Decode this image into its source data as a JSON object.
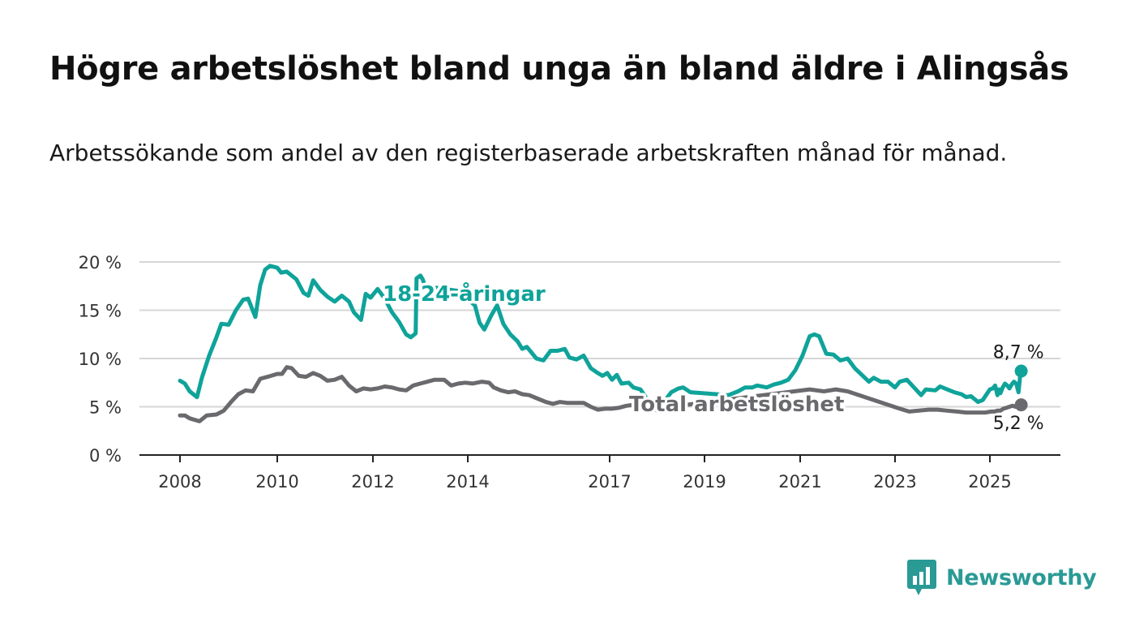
{
  "header": {
    "title": "Högre arbetslöshet bland unga än bland äldre i Alingsås",
    "subtitle": "Arbetssökande som andel av den registerbaserade arbetskraften månad för månad."
  },
  "brand": {
    "name": "Newsworthy",
    "color": "#2a9a95"
  },
  "chart_data": {
    "type": "line",
    "title": "Högre arbetslöshet bland unga än bland äldre i Alingsås",
    "subtitle": "Arbetssökande som andel av den registerbaserade arbetskraften månad för månad.",
    "x_ticks": [
      2008,
      2010,
      2012,
      2014,
      2017,
      2019,
      2021,
      2023,
      2025
    ],
    "x_tick_labels": [
      "2008",
      "2010",
      "2012",
      "2014",
      "2017",
      "2019",
      "2021",
      "2023",
      "2025"
    ],
    "y_ticks": [
      0,
      5,
      10,
      15,
      20
    ],
    "y_tick_labels": [
      "0 %",
      "5 %",
      "10 %",
      "15 %",
      "20 %"
    ],
    "xlim": [
      2007.15,
      2026.6
    ],
    "ylim": [
      0,
      20
    ],
    "grid": true,
    "series": [
      {
        "name": "18-24-åringar",
        "color": "#0fa39a",
        "end_label": "8,7 %",
        "points": [
          [
            2008.0,
            7.7
          ],
          [
            2008.1,
            7.4
          ],
          [
            2008.2,
            6.6
          ],
          [
            2008.35,
            6.0
          ],
          [
            2008.45,
            8.0
          ],
          [
            2008.6,
            10.3
          ],
          [
            2008.75,
            12.2
          ],
          [
            2008.85,
            13.6
          ],
          [
            2009.0,
            13.5
          ],
          [
            2009.15,
            15.0
          ],
          [
            2009.3,
            16.1
          ],
          [
            2009.4,
            16.2
          ],
          [
            2009.55,
            14.3
          ],
          [
            2009.65,
            17.6
          ],
          [
            2009.75,
            19.2
          ],
          [
            2009.85,
            19.6
          ],
          [
            2010.0,
            19.4
          ],
          [
            2010.08,
            18.9
          ],
          [
            2010.2,
            19.0
          ],
          [
            2010.4,
            18.2
          ],
          [
            2010.55,
            16.8
          ],
          [
            2010.65,
            16.5
          ],
          [
            2010.75,
            18.1
          ],
          [
            2010.9,
            17.1
          ],
          [
            2011.05,
            16.4
          ],
          [
            2011.2,
            15.9
          ],
          [
            2011.35,
            16.5
          ],
          [
            2011.5,
            15.9
          ],
          [
            2011.6,
            14.8
          ],
          [
            2011.75,
            14.0
          ],
          [
            2011.85,
            16.7
          ],
          [
            2011.95,
            16.3
          ],
          [
            2012.1,
            17.2
          ],
          [
            2012.25,
            16.2
          ],
          [
            2012.4,
            14.8
          ],
          [
            2012.55,
            13.8
          ],
          [
            2012.7,
            12.5
          ],
          [
            2012.8,
            12.2
          ],
          [
            2012.9,
            12.6
          ],
          [
            2012.92,
            18.3
          ],
          [
            2013.0,
            18.6
          ],
          [
            2013.05,
            18.2
          ],
          [
            2013.1,
            17.5
          ],
          [
            2013.8,
            17.0
          ],
          [
            2014.15,
            15.5
          ],
          [
            2014.25,
            13.7
          ],
          [
            2014.35,
            13.0
          ],
          [
            2014.5,
            14.5
          ],
          [
            2014.62,
            15.5
          ],
          [
            2014.75,
            13.6
          ],
          [
            2014.9,
            12.5
          ],
          [
            2015.05,
            11.8
          ],
          [
            2015.15,
            11.0
          ],
          [
            2015.25,
            11.2
          ],
          [
            2015.45,
            10.0
          ],
          [
            2015.6,
            9.8
          ],
          [
            2015.75,
            10.8
          ],
          [
            2015.9,
            10.8
          ],
          [
            2016.05,
            11.0
          ],
          [
            2016.15,
            10.1
          ],
          [
            2016.3,
            9.9
          ],
          [
            2016.45,
            10.3
          ],
          [
            2016.6,
            9.0
          ],
          [
            2016.75,
            8.5
          ],
          [
            2016.85,
            8.2
          ],
          [
            2016.95,
            8.5
          ],
          [
            2017.05,
            7.8
          ],
          [
            2017.15,
            8.3
          ],
          [
            2017.25,
            7.4
          ],
          [
            2017.4,
            7.5
          ],
          [
            2017.5,
            7.0
          ],
          [
            2017.65,
            6.8
          ],
          [
            2017.8,
            5.7
          ],
          [
            2018.0,
            4.6
          ],
          [
            2018.3,
            6.5
          ],
          [
            2018.45,
            6.9
          ],
          [
            2018.55,
            7.0
          ],
          [
            2018.7,
            6.5
          ],
          [
            2019.5,
            6.2
          ],
          [
            2019.7,
            6.6
          ],
          [
            2019.85,
            7.0
          ],
          [
            2020.0,
            7.0
          ],
          [
            2020.1,
            7.2
          ],
          [
            2020.3,
            7.0
          ],
          [
            2020.45,
            7.3
          ],
          [
            2020.6,
            7.5
          ],
          [
            2020.75,
            7.8
          ],
          [
            2020.9,
            8.8
          ],
          [
            2021.05,
            10.3
          ],
          [
            2021.2,
            12.3
          ],
          [
            2021.3,
            12.5
          ],
          [
            2021.4,
            12.3
          ],
          [
            2021.55,
            10.5
          ],
          [
            2021.7,
            10.4
          ],
          [
            2021.85,
            9.8
          ],
          [
            2022.0,
            10.0
          ],
          [
            2022.15,
            9.0
          ],
          [
            2022.3,
            8.3
          ],
          [
            2022.45,
            7.6
          ],
          [
            2022.55,
            8.0
          ],
          [
            2022.7,
            7.6
          ],
          [
            2022.85,
            7.6
          ],
          [
            2023.0,
            7.0
          ],
          [
            2023.1,
            7.6
          ],
          [
            2023.25,
            7.8
          ],
          [
            2023.4,
            7.0
          ],
          [
            2023.55,
            6.2
          ],
          [
            2023.65,
            6.8
          ],
          [
            2023.85,
            6.7
          ],
          [
            2023.95,
            7.1
          ],
          [
            2024.1,
            6.8
          ],
          [
            2024.25,
            6.5
          ],
          [
            2024.4,
            6.3
          ],
          [
            2024.5,
            6.0
          ],
          [
            2024.6,
            6.1
          ],
          [
            2024.75,
            5.5
          ],
          [
            2024.85,
            5.7
          ],
          [
            2025.0,
            6.8
          ],
          [
            2025.2,
            6.9
          ],
          [
            2025.35,
            7.2
          ],
          [
            2025.5,
            6.2
          ],
          [
            2025.6,
            6.8
          ],
          [
            2025.7,
            6.4
          ],
          [
            2025.85,
            7.0
          ],
          [
            2026.0,
            7.4
          ],
          [
            2026.15,
            7.2
          ],
          [
            2026.3,
            6.9
          ],
          [
            2026.45,
            7.3
          ],
          [
            2026.6,
            7.6
          ],
          [
            2026.75,
            7.4
          ],
          [
            2026.9,
            6.5
          ],
          [
            2027.0,
            8.0
          ],
          [
            2027.08,
            8.7
          ]
        ]
      },
      {
        "name": "Total arbetslöshet",
        "color": "#6a6a6e",
        "end_label": "5,2 %",
        "points": [
          [
            2008.0,
            4.1
          ],
          [
            2008.1,
            4.1
          ],
          [
            2008.2,
            3.8
          ],
          [
            2008.4,
            3.5
          ],
          [
            2008.55,
            4.1
          ],
          [
            2008.75,
            4.2
          ],
          [
            2008.9,
            4.6
          ],
          [
            2009.05,
            5.5
          ],
          [
            2009.2,
            6.3
          ],
          [
            2009.35,
            6.7
          ],
          [
            2009.5,
            6.6
          ],
          [
            2009.65,
            7.9
          ],
          [
            2009.8,
            8.1
          ],
          [
            2010.0,
            8.4
          ],
          [
            2010.1,
            8.4
          ],
          [
            2010.2,
            9.1
          ],
          [
            2010.3,
            9.0
          ],
          [
            2010.45,
            8.2
          ],
          [
            2010.6,
            8.1
          ],
          [
            2010.75,
            8.5
          ],
          [
            2010.9,
            8.2
          ],
          [
            2011.05,
            7.7
          ],
          [
            2011.2,
            7.8
          ],
          [
            2011.35,
            8.1
          ],
          [
            2011.5,
            7.2
          ],
          [
            2011.65,
            6.6
          ],
          [
            2011.8,
            6.9
          ],
          [
            2011.95,
            6.8
          ],
          [
            2012.1,
            6.9
          ],
          [
            2012.25,
            7.1
          ],
          [
            2012.4,
            7.0
          ],
          [
            2012.55,
            6.8
          ],
          [
            2012.7,
            6.7
          ],
          [
            2012.85,
            7.2
          ],
          [
            2013.0,
            7.4
          ],
          [
            2013.15,
            7.6
          ],
          [
            2013.3,
            7.8
          ],
          [
            2013.5,
            7.8
          ],
          [
            2013.65,
            7.2
          ],
          [
            2013.8,
            7.4
          ],
          [
            2013.95,
            7.5
          ],
          [
            2014.1,
            7.4
          ],
          [
            2014.3,
            7.6
          ],
          [
            2014.45,
            7.5
          ],
          [
            2014.55,
            7.0
          ],
          [
            2014.7,
            6.7
          ],
          [
            2014.85,
            6.5
          ],
          [
            2015.0,
            6.6
          ],
          [
            2015.15,
            6.3
          ],
          [
            2015.3,
            6.2
          ],
          [
            2015.5,
            5.8
          ],
          [
            2015.65,
            5.5
          ],
          [
            2015.8,
            5.3
          ],
          [
            2015.95,
            5.5
          ],
          [
            2016.1,
            5.4
          ],
          [
            2016.25,
            5.4
          ],
          [
            2016.45,
            5.4
          ],
          [
            2016.6,
            5.0
          ],
          [
            2016.75,
            4.7
          ],
          [
            2016.9,
            4.8
          ],
          [
            2017.05,
            4.8
          ],
          [
            2017.2,
            4.9
          ],
          [
            2017.35,
            5.1
          ],
          [
            2017.5,
            5.2
          ],
          [
            2017.65,
            5.0
          ],
          [
            2017.8,
            4.7
          ],
          [
            2021.2,
            6.8
          ],
          [
            2021.5,
            6.6
          ],
          [
            2021.75,
            6.8
          ],
          [
            2022.0,
            6.6
          ],
          [
            2023.1,
            4.8
          ],
          [
            2023.3,
            4.5
          ],
          [
            2023.5,
            4.6
          ],
          [
            2023.7,
            4.7
          ],
          [
            2023.9,
            4.7
          ],
          [
            2024.1,
            4.6
          ],
          [
            2024.3,
            4.5
          ],
          [
            2024.5,
            4.4
          ],
          [
            2024.7,
            4.4
          ],
          [
            2024.9,
            4.4
          ],
          [
            2025.1,
            4.5
          ],
          [
            2025.3,
            4.5
          ],
          [
            2025.5,
            4.6
          ],
          [
            2025.7,
            4.6
          ],
          [
            2025.9,
            4.8
          ],
          [
            2026.1,
            4.9
          ],
          [
            2026.3,
            5.0
          ],
          [
            2026.5,
            5.1
          ],
          [
            2026.7,
            5.0
          ],
          [
            2026.9,
            5.0
          ],
          [
            2027.0,
            5.1
          ],
          [
            2027.08,
            5.2
          ]
        ]
      }
    ]
  }
}
